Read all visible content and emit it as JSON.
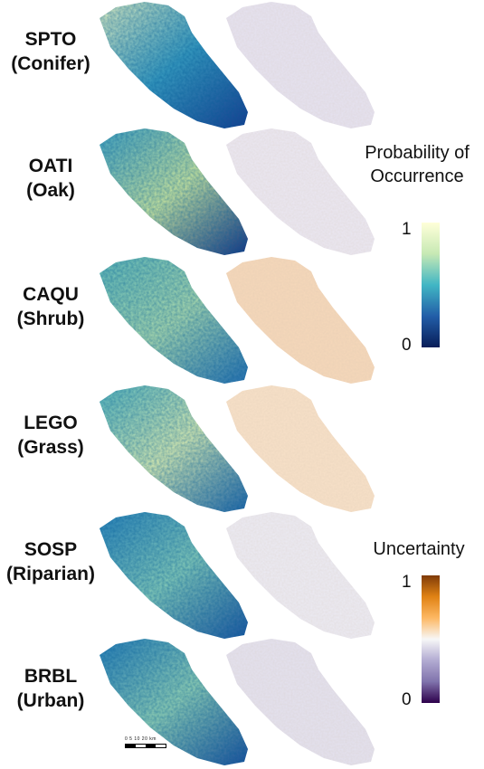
{
  "species": [
    {
      "code": "SPTO",
      "group": "(Conifer)",
      "prob_colors": [
        "#f2f9c2",
        "#3b9dc1",
        "#193a8e"
      ],
      "unc_color": "#e6e3f2"
    },
    {
      "code": "OATI",
      "group": "(Oak)",
      "prob_colors": [
        "#4aa8c2",
        "#d7ee9e",
        "#16307f"
      ],
      "unc_color": "#ebe8f3"
    },
    {
      "code": "CAQU",
      "group": "(Shrub)",
      "prob_colors": [
        "#6ac0b9",
        "#b6e2ae",
        "#2a72b2"
      ],
      "unc_color": "#f6d8ba"
    },
    {
      "code": "LEGO",
      "group": "(Grass)",
      "prob_colors": [
        "#61bdbd",
        "#e6f4b2",
        "#2567a8"
      ],
      "unc_color": "#f8e1c8"
    },
    {
      "code": "SOSP",
      "group": "(Riparian)",
      "prob_colors": [
        "#2f86bb",
        "#8dd1b9",
        "#1f55a0"
      ],
      "unc_color": "#ecebf4"
    },
    {
      "code": "BRBL",
      "group": "(Urban)",
      "prob_colors": [
        "#2b80b8",
        "#9bd7b5",
        "#1d4e9b"
      ],
      "unc_color": "#e4e2f0"
    }
  ],
  "legend_probability": {
    "title_line1": "Probability of",
    "title_line2": "Occurrence",
    "max_label": "1",
    "min_label": "0",
    "colors": [
      "#ffffd9",
      "#c7e9b4",
      "#41b6c4",
      "#225ea8",
      "#081d58"
    ]
  },
  "legend_uncertainty": {
    "title": "Uncertainty",
    "max_label": "1",
    "min_label": "0",
    "colors": [
      "#7f3b08",
      "#e08214",
      "#fdb863",
      "#f7f7f7",
      "#b2abd2",
      "#8073ac",
      "#2d004b"
    ]
  },
  "scale_bar": {
    "numbers": "0  5  10     20",
    "unit": "km"
  }
}
